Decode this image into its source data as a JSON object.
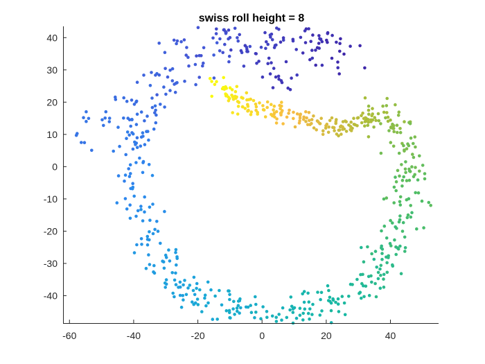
{
  "chart_data": {
    "type": "scatter",
    "title": "swiss roll height = 8",
    "xlabel": "",
    "ylabel": "",
    "xlim": [
      -62,
      55
    ],
    "ylim": [
      -48.5,
      43.5
    ],
    "xticks": [
      -60,
      -40,
      -20,
      0,
      20,
      40
    ],
    "yticks": [
      -40,
      -30,
      -20,
      -10,
      0,
      10,
      20,
      30,
      40
    ],
    "grid": false,
    "colormap": "parula (color by position along roll: yellow inner end → blue outer end)",
    "colors": {
      "start": "#f9fb0e",
      "orange": "#f8ba44",
      "olive": "#a8bd3a",
      "green": "#4dbd66",
      "teal": "#17b8a3",
      "cyan": "#1aa8d8",
      "blue": "#2d87ee",
      "violet": "#4458d7",
      "end": "#3e26a8"
    },
    "spine": [
      {
        "t": 0.0,
        "x": -14,
        "y": 26
      },
      {
        "t": 0.04,
        "x": -8,
        "y": 20
      },
      {
        "t": 0.08,
        "x": 0,
        "y": 18
      },
      {
        "t": 0.12,
        "x": 8,
        "y": 17
      },
      {
        "t": 0.16,
        "x": 16,
        "y": 14
      },
      {
        "t": 0.2,
        "x": 24,
        "y": 12
      },
      {
        "t": 0.24,
        "x": 33,
        "y": 14
      },
      {
        "t": 0.27,
        "x": 38,
        "y": 16
      },
      {
        "t": 0.3,
        "x": 42,
        "y": 11
      },
      {
        "t": 0.33,
        "x": 45,
        "y": 3
      },
      {
        "t": 0.36,
        "x": 46,
        "y": -6
      },
      {
        "t": 0.39,
        "x": 44,
        "y": -15
      },
      {
        "t": 0.42,
        "x": 41,
        "y": -24
      },
      {
        "t": 0.45,
        "x": 36,
        "y": -32
      },
      {
        "t": 0.48,
        "x": 30,
        "y": -38
      },
      {
        "t": 0.51,
        "x": 20,
        "y": -43
      },
      {
        "t": 0.54,
        "x": 10,
        "y": -46
      },
      {
        "t": 0.57,
        "x": 0,
        "y": -46
      },
      {
        "t": 0.6,
        "x": -10,
        "y": -44
      },
      {
        "t": 0.63,
        "x": -20,
        "y": -40
      },
      {
        "t": 0.66,
        "x": -28,
        "y": -34
      },
      {
        "t": 0.69,
        "x": -34,
        "y": -24
      },
      {
        "t": 0.72,
        "x": -37,
        "y": -14
      },
      {
        "t": 0.75,
        "x": -40,
        "y": -4
      },
      {
        "t": 0.78,
        "x": -40,
        "y": 6
      },
      {
        "t": 0.81,
        "x": -38,
        "y": 16
      },
      {
        "t": 0.84,
        "x": -32,
        "y": 26
      },
      {
        "t": 0.87,
        "x": -22,
        "y": 34
      },
      {
        "t": 0.9,
        "x": -12,
        "y": 40
      },
      {
        "t": 0.94,
        "x": 4,
        "y": 41
      },
      {
        "t": 0.97,
        "x": 16,
        "y": 39
      },
      {
        "t": 1.0,
        "x": 26,
        "y": 35
      }
    ],
    "extra_points": [
      {
        "x": -56,
        "y": 12,
        "t": 0.8
      },
      {
        "x": -55,
        "y": 15,
        "t": 0.8
      },
      {
        "x": -54,
        "y": 7,
        "t": 0.8
      },
      {
        "x": -50,
        "y": 14,
        "t": 0.8
      },
      {
        "x": -48,
        "y": 16,
        "t": 0.8
      },
      {
        "x": -45,
        "y": 21,
        "t": 0.82
      },
      {
        "x": 0,
        "y": 30,
        "t": 0.95
      },
      {
        "x": 3,
        "y": 31,
        "t": 0.95
      },
      {
        "x": 5,
        "y": 28,
        "t": 0.96
      },
      {
        "x": 6,
        "y": 26,
        "t": 0.96
      },
      {
        "x": 7,
        "y": 24,
        "t": 0.96
      },
      {
        "x": -5,
        "y": 36,
        "t": 0.93
      }
    ]
  }
}
